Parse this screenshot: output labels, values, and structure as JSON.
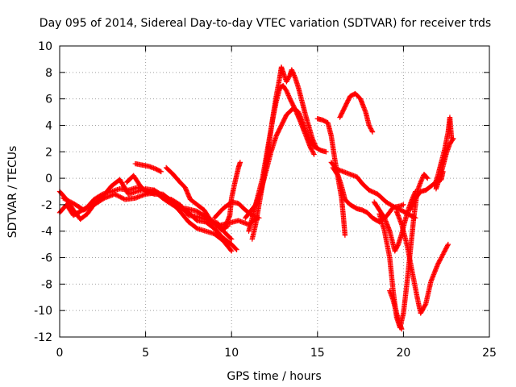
{
  "chart_data": {
    "type": "scatter",
    "title": "Day 095 of 2014, Sidereal Day-to-day VTEC variation (SDTVAR) for receiver trds",
    "xlabel": "GPS time / hours",
    "ylabel": "SDTVAR / TECUs",
    "xlim": [
      0,
      25
    ],
    "ylim": [
      -12,
      10
    ],
    "xticks": [
      0,
      5,
      10,
      15,
      20,
      25
    ],
    "yticks": [
      -12,
      -10,
      -8,
      -6,
      -4,
      -2,
      0,
      2,
      4,
      6,
      8,
      10
    ],
    "grid": true,
    "legend": "none",
    "marker": "+",
    "color": "#ff0000",
    "series": [
      {
        "points": [
          [
            0.0,
            -2.6
          ],
          [
            0.4,
            -2.0
          ],
          [
            0.8,
            -2.8
          ],
          [
            1.2,
            -2.5
          ],
          [
            1.6,
            -2.2
          ],
          [
            2.0,
            -1.6
          ],
          [
            2.5,
            -1.2
          ],
          [
            3.0,
            -1.0
          ],
          [
            3.5,
            -0.8
          ],
          [
            4.0,
            -0.9
          ],
          [
            4.5,
            -0.7
          ],
          [
            5.0,
            -0.9
          ],
          [
            5.5,
            -1.2
          ],
          [
            6.0,
            -1.2
          ],
          [
            6.5,
            -1.7
          ],
          [
            7.0,
            -2.2
          ],
          [
            7.5,
            -2.6
          ],
          [
            8.0,
            -3.2
          ],
          [
            8.5,
            -3.3
          ],
          [
            9.0,
            -3.8
          ],
          [
            9.5,
            -4.5
          ],
          [
            10.0,
            -5.0
          ],
          [
            10.3,
            -5.4
          ]
        ]
      },
      {
        "points": [
          [
            0.0,
            -1.0
          ],
          [
            0.4,
            -1.6
          ],
          [
            0.8,
            -2.4
          ],
          [
            1.2,
            -3.1
          ],
          [
            1.6,
            -2.7
          ],
          [
            2.0,
            -2.0
          ],
          [
            2.5,
            -1.4
          ],
          [
            3.0,
            -0.6
          ],
          [
            3.5,
            -0.1
          ],
          [
            4.0,
            -1.2
          ],
          [
            4.5,
            -1.0
          ],
          [
            5.0,
            -0.8
          ],
          [
            5.5,
            -0.9
          ],
          [
            6.0,
            -1.3
          ],
          [
            6.5,
            -1.8
          ],
          [
            7.0,
            -2.5
          ],
          [
            7.5,
            -3.3
          ],
          [
            8.0,
            -3.8
          ],
          [
            8.5,
            -4.0
          ],
          [
            9.0,
            -4.2
          ],
          [
            9.5,
            -4.7
          ],
          [
            10.0,
            -5.5
          ]
        ]
      },
      {
        "points": [
          [
            0.2,
            -1.5
          ],
          [
            0.8,
            -1.9
          ],
          [
            1.4,
            -2.4
          ],
          [
            2.0,
            -2.0
          ],
          [
            2.6,
            -1.5
          ],
          [
            3.2,
            -1.2
          ],
          [
            3.8,
            -1.6
          ],
          [
            4.4,
            -1.5
          ],
          [
            5.0,
            -1.2
          ],
          [
            5.6,
            -1.1
          ],
          [
            6.2,
            -1.7
          ],
          [
            6.8,
            -2.2
          ],
          [
            7.4,
            -2.3
          ],
          [
            8.0,
            -2.5
          ],
          [
            8.6,
            -3.0
          ],
          [
            9.2,
            -3.6
          ],
          [
            9.8,
            -3.4
          ],
          [
            10.4,
            -3.2
          ],
          [
            11.0,
            -3.5
          ],
          [
            11.5,
            -3.0
          ]
        ]
      },
      {
        "points": [
          [
            3.9,
            -0.3
          ],
          [
            4.3,
            0.2
          ],
          [
            4.7,
            -0.6
          ],
          [
            5.1,
            -1.1
          ],
          [
            5.5,
            -0.9
          ],
          [
            6.0,
            -1.5
          ],
          [
            6.5,
            -1.6
          ],
          [
            7.0,
            -2.0
          ],
          [
            7.5,
            -2.8
          ],
          [
            8.0,
            -2.9
          ],
          [
            8.5,
            -3.1
          ],
          [
            9.0,
            -3.4
          ],
          [
            9.4,
            -3.9
          ],
          [
            9.8,
            -3.6
          ]
        ]
      },
      {
        "points": [
          [
            4.4,
            1.1
          ],
          [
            4.8,
            1.0
          ],
          [
            5.2,
            0.9
          ],
          [
            5.6,
            0.7
          ],
          [
            5.9,
            0.5
          ]
        ]
      },
      {
        "points": [
          [
            6.2,
            0.8
          ],
          [
            6.6,
            0.3
          ],
          [
            7.0,
            -0.3
          ],
          [
            7.3,
            -0.7
          ],
          [
            7.6,
            -1.6
          ],
          [
            8.0,
            -2.0
          ],
          [
            8.4,
            -2.4
          ],
          [
            8.8,
            -3.2
          ],
          [
            9.2,
            -3.4
          ],
          [
            9.6,
            -4.1
          ],
          [
            10.0,
            -4.6
          ]
        ]
      },
      {
        "points": [
          [
            9.6,
            -3.8
          ],
          [
            9.9,
            -2.8
          ],
          [
            10.0,
            -1.5
          ],
          [
            10.2,
            -0.3
          ],
          [
            10.4,
            0.8
          ],
          [
            10.5,
            1.2
          ]
        ]
      },
      {
        "points": [
          [
            9.0,
            -3.0
          ],
          [
            9.5,
            -2.3
          ],
          [
            10.0,
            -1.8
          ],
          [
            10.4,
            -1.9
          ],
          [
            10.8,
            -2.4
          ],
          [
            11.2,
            -2.8
          ],
          [
            11.6,
            -3.0
          ]
        ]
      },
      {
        "points": [
          [
            10.8,
            -3.0
          ],
          [
            11.1,
            -2.5
          ],
          [
            11.4,
            -2.0
          ],
          [
            11.7,
            -1.0
          ],
          [
            12.0,
            0.5
          ],
          [
            12.3,
            2.0
          ],
          [
            12.6,
            3.2
          ],
          [
            12.9,
            4.0
          ],
          [
            13.2,
            4.8
          ],
          [
            13.6,
            5.3
          ],
          [
            13.9,
            5.0
          ],
          [
            14.2,
            4.0
          ],
          [
            14.5,
            3.0
          ],
          [
            14.8,
            2.4
          ],
          [
            15.2,
            2.1
          ],
          [
            15.5,
            2.0
          ]
        ]
      },
      {
        "points": [
          [
            11.0,
            -4.0
          ],
          [
            11.2,
            -3.0
          ],
          [
            11.5,
            -1.5
          ],
          [
            11.8,
            0.0
          ],
          [
            12.0,
            1.5
          ],
          [
            12.2,
            3.0
          ],
          [
            12.4,
            4.5
          ],
          [
            12.6,
            5.8
          ],
          [
            12.8,
            6.8
          ],
          [
            13.0,
            7.0
          ],
          [
            13.2,
            6.6
          ],
          [
            13.4,
            6.0
          ],
          [
            13.7,
            5.2
          ],
          [
            14.0,
            4.3
          ],
          [
            14.3,
            3.3
          ],
          [
            14.6,
            2.3
          ],
          [
            14.8,
            1.8
          ]
        ]
      },
      {
        "points": [
          [
            11.2,
            -4.6
          ],
          [
            11.4,
            -3.5
          ],
          [
            11.6,
            -2.0
          ],
          [
            11.8,
            -0.5
          ],
          [
            12.0,
            1.0
          ],
          [
            12.2,
            2.8
          ],
          [
            12.4,
            4.6
          ],
          [
            12.6,
            6.2
          ],
          [
            12.8,
            7.6
          ],
          [
            12.9,
            8.4
          ],
          [
            13.0,
            8.0
          ],
          [
            13.2,
            7.3
          ],
          [
            13.4,
            7.8
          ],
          [
            13.5,
            8.2
          ],
          [
            13.7,
            7.6
          ],
          [
            13.9,
            6.8
          ],
          [
            14.1,
            5.8
          ],
          [
            14.3,
            4.8
          ],
          [
            14.5,
            3.9
          ],
          [
            14.7,
            3.0
          ],
          [
            14.9,
            2.4
          ]
        ]
      },
      {
        "points": [
          [
            15.0,
            4.5
          ],
          [
            15.3,
            4.4
          ],
          [
            15.6,
            4.2
          ],
          [
            15.8,
            3.2
          ],
          [
            16.0,
            1.5
          ],
          [
            16.2,
            0.0
          ],
          [
            16.4,
            -1.5
          ],
          [
            16.5,
            -2.8
          ],
          [
            16.6,
            -4.3
          ]
        ]
      },
      {
        "points": [
          [
            15.8,
            1.2
          ],
          [
            16.1,
            0.7
          ],
          [
            16.5,
            0.5
          ],
          [
            16.9,
            0.3
          ],
          [
            17.3,
            0.1
          ],
          [
            17.6,
            -0.4
          ],
          [
            18.0,
            -0.9
          ],
          [
            18.5,
            -1.2
          ],
          [
            19.0,
            -1.8
          ],
          [
            19.5,
            -2.2
          ],
          [
            20.0,
            -2.5
          ],
          [
            20.4,
            -2.8
          ],
          [
            20.7,
            -3.0
          ]
        ]
      },
      {
        "points": [
          [
            15.9,
            0.8
          ],
          [
            16.2,
            0.2
          ],
          [
            16.4,
            -0.6
          ],
          [
            16.6,
            -1.6
          ],
          [
            16.9,
            -2.0
          ],
          [
            17.3,
            -2.3
          ],
          [
            17.6,
            -2.4
          ],
          [
            17.9,
            -2.6
          ],
          [
            18.2,
            -3.0
          ],
          [
            18.6,
            -3.3
          ],
          [
            19.0,
            -2.9
          ],
          [
            19.4,
            -2.2
          ],
          [
            19.8,
            -2.1
          ],
          [
            20.0,
            -2.0
          ]
        ]
      },
      {
        "points": [
          [
            16.3,
            4.6
          ],
          [
            16.6,
            5.4
          ],
          [
            16.9,
            6.2
          ],
          [
            17.2,
            6.4
          ],
          [
            17.5,
            6.0
          ],
          [
            17.8,
            5.0
          ],
          [
            18.0,
            4.0
          ],
          [
            18.2,
            3.5
          ]
        ]
      },
      {
        "points": [
          [
            18.3,
            -1.8
          ],
          [
            18.6,
            -2.4
          ],
          [
            18.9,
            -3.0
          ],
          [
            19.2,
            -4.0
          ],
          [
            19.5,
            -5.5
          ],
          [
            19.7,
            -5.0
          ],
          [
            19.9,
            -4.2
          ],
          [
            20.1,
            -3.2
          ],
          [
            20.3,
            -2.3
          ],
          [
            20.5,
            -1.6
          ],
          [
            20.7,
            -1.0
          ]
        ]
      },
      {
        "points": [
          [
            18.6,
            -2.7
          ],
          [
            18.9,
            -4.0
          ],
          [
            19.2,
            -6.0
          ],
          [
            19.4,
            -8.5
          ],
          [
            19.6,
            -10.5
          ],
          [
            19.8,
            -11.3
          ],
          [
            20.0,
            -10.2
          ],
          [
            20.2,
            -8.0
          ],
          [
            20.4,
            -5.5
          ],
          [
            20.6,
            -3.0
          ],
          [
            20.8,
            -1.0
          ],
          [
            21.0,
            -0.3
          ],
          [
            21.2,
            0.3
          ],
          [
            21.4,
            0.0
          ]
        ]
      },
      {
        "points": [
          [
            19.2,
            -8.5
          ],
          [
            19.4,
            -9.2
          ],
          [
            19.6,
            -10.2
          ],
          [
            19.8,
            -11.1
          ],
          [
            19.9,
            -11.4
          ]
        ]
      },
      {
        "points": [
          [
            19.6,
            -2.5
          ],
          [
            19.9,
            -3.5
          ],
          [
            20.2,
            -5.0
          ],
          [
            20.5,
            -7.0
          ],
          [
            20.8,
            -9.0
          ],
          [
            21.0,
            -10.2
          ],
          [
            21.3,
            -9.5
          ],
          [
            21.6,
            -7.8
          ],
          [
            22.0,
            -6.5
          ],
          [
            22.4,
            -5.5
          ],
          [
            22.6,
            -5.0
          ]
        ]
      },
      {
        "points": [
          [
            20.4,
            -2.4
          ],
          [
            20.7,
            -1.5
          ],
          [
            21.0,
            -1.0
          ],
          [
            21.3,
            -0.9
          ],
          [
            21.6,
            -0.6
          ],
          [
            21.9,
            -0.3
          ],
          [
            22.2,
            -0.1
          ],
          [
            22.3,
            0.5
          ]
        ]
      },
      {
        "points": [
          [
            21.8,
            -0.6
          ],
          [
            22.0,
            0.2
          ],
          [
            22.2,
            1.2
          ],
          [
            22.4,
            2.2
          ],
          [
            22.6,
            3.5
          ],
          [
            22.7,
            4.6
          ],
          [
            22.8,
            3.0
          ]
        ]
      },
      {
        "points": [
          [
            21.9,
            -0.8
          ],
          [
            22.1,
            0.0
          ],
          [
            22.3,
            0.9
          ],
          [
            22.5,
            1.9
          ],
          [
            22.7,
            2.6
          ],
          [
            22.9,
            3.0
          ]
        ]
      }
    ]
  }
}
